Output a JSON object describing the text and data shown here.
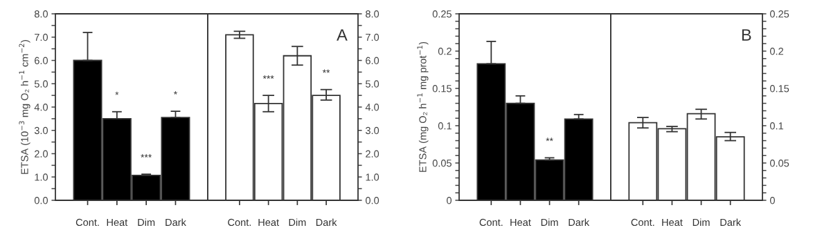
{
  "chart_data": [
    {
      "type": "bar",
      "categories": [
        "Cont.",
        "Heat",
        "Dim",
        "Dark"
      ],
      "ylabel": "ETSA (10$^{−3}$ mg O₂ h$^{−1}$ cm$^{−2}$)",
      "series": [
        {
          "color": "#000000",
          "values": [
            6.0,
            3.5,
            1.07,
            3.55
          ],
          "errors": [
            [
              6.0,
              7.2
            ],
            [
              3.5,
              3.8
            ],
            [
              1.07,
              1.12
            ],
            [
              3.55,
              3.82
            ]
          ]
        }
      ],
      "ylim": [
        0,
        8
      ],
      "yticks": [
        {
          "value": 0,
          "label": "0.0"
        },
        {
          "value": 0.5,
          "label": null
        },
        {
          "value": 1,
          "label": "1.0"
        },
        {
          "value": 1.5,
          "label": null
        },
        {
          "value": 2,
          "label": "2.0"
        },
        {
          "value": 2.5,
          "label": null
        },
        {
          "value": 3,
          "label": "3.0"
        },
        {
          "value": 3.5,
          "label": null
        },
        {
          "value": 4,
          "label": "4.0"
        },
        {
          "value": 4.5,
          "label": null
        },
        {
          "value": 5,
          "label": "5.0"
        },
        {
          "value": 5.5,
          "label": null
        },
        {
          "value": 6,
          "label": "6.0"
        },
        {
          "value": 6.5,
          "label": null
        },
        {
          "value": 7,
          "label": "7.0"
        },
        {
          "value": 7.5,
          "label": null
        },
        {
          "value": 8,
          "label": "8.0"
        }
      ],
      "annotations": [
        {
          "text": "*",
          "x": "Heat",
          "y": 3.8
        },
        {
          "text": "***",
          "x": "Dim",
          "y": 1.12
        },
        {
          "text": "*",
          "x": "Dark",
          "y": 3.82
        }
      ]
    },
    {
      "type": "bar",
      "categories": [
        "Cont.",
        "Heat",
        "Dim",
        "Dark"
      ],
      "series": [
        {
          "color": "#ffffff",
          "axis": "y2",
          "values": [
            7.1,
            4.15,
            6.2,
            4.5
          ],
          "errors": [
            [
              6.95,
              7.25
            ],
            [
              3.8,
              4.5
            ],
            [
              5.8,
              6.6
            ],
            [
              4.3,
              4.75
            ]
          ],
          "value_labels": [
            null,
            "***",
            null,
            "**"
          ]
        }
      ],
      "y2lim": [
        0,
        8
      ],
      "y2ticks": [
        {
          "value": 0,
          "label": "0.0"
        },
        {
          "value": 0.5,
          "label": null
        },
        {
          "value": 1,
          "label": "1.0"
        },
        {
          "value": 1.5,
          "label": null
        },
        {
          "value": 2,
          "label": "2.0"
        },
        {
          "value": 2.5,
          "label": null
        },
        {
          "value": 3,
          "label": "3.0"
        },
        {
          "value": 3.5,
          "label": null
        },
        {
          "value": 4,
          "label": "4.0"
        },
        {
          "value": 4.5,
          "label": null
        },
        {
          "value": 5,
          "label": "5.0"
        },
        {
          "value": 5.5,
          "label": null
        },
        {
          "value": 6,
          "label": "6.0"
        },
        {
          "value": 6.5,
          "label": null
        },
        {
          "value": 7,
          "label": "7.0"
        },
        {
          "value": 7.5,
          "label": null
        },
        {
          "value": 8,
          "label": "8.0"
        }
      ],
      "annotations": [
        "A"
      ]
    },
    {
      "type": "bar",
      "categories": [
        "Cont.",
        "Heat",
        "Dim",
        "Dark"
      ],
      "ylabel": "ETSA (mg O₂ h$^{−1}$ mg prot$^{−1}$)",
      "series": [
        {
          "color": "#000000",
          "values": [
            0.183,
            0.13,
            0.054,
            0.109
          ],
          "errors": [
            [
              0.183,
              0.213
            ],
            [
              0.13,
              0.14
            ],
            [
              0.054,
              0.057
            ],
            [
              0.109,
              0.115
            ]
          ]
        }
      ],
      "ylim": [
        0,
        0.25
      ],
      "yticks": [
        0,
        {
          "value": 0.01,
          "label": null
        },
        {
          "value": 0.02,
          "label": null
        },
        {
          "value": 0.03,
          "label": null
        },
        {
          "value": 0.04,
          "label": null
        },
        0.05,
        {
          "value": 0.06,
          "label": null
        },
        {
          "value": 0.07,
          "label": null
        },
        {
          "value": 0.08,
          "label": null
        },
        {
          "value": 0.09,
          "label": null
        },
        0.1,
        {
          "value": 0.11,
          "label": null
        },
        {
          "value": 0.12,
          "label": null
        },
        {
          "value": 0.13,
          "label": null
        },
        {
          "value": 0.14,
          "label": null
        },
        0.15,
        {
          "value": 0.16,
          "label": null
        },
        {
          "value": 0.17,
          "label": null
        },
        {
          "value": 0.18,
          "label": null
        },
        {
          "value": 0.19,
          "label": null
        },
        0.2,
        {
          "value": 0.21,
          "label": null
        },
        {
          "value": 0.22,
          "label": null
        },
        {
          "value": 0.23,
          "label": null
        },
        {
          "value": 0.24,
          "label": null
        },
        0.25
      ],
      "annotations": [
        {
          "text": "**",
          "x": "Dim",
          "y": 0.057
        }
      ]
    },
    {
      "type": "bar",
      "categories": [
        "Cont.",
        "Heat",
        "Dim",
        "Dark"
      ],
      "series": [
        {
          "color": "#ffffff",
          "axis": "y2",
          "values": [
            0.104,
            0.096,
            0.116,
            0.085
          ],
          "errors": [
            [
              0.097,
              0.111
            ],
            [
              0.092,
              0.099
            ],
            [
              0.109,
              0.122
            ],
            [
              0.08,
              0.091
            ]
          ]
        }
      ],
      "y2lim": [
        0,
        0.25
      ],
      "y2ticks": [
        0,
        {
          "value": 0.01,
          "label": null
        },
        {
          "value": 0.02,
          "label": null
        },
        {
          "value": 0.03,
          "label": null
        },
        {
          "value": 0.04,
          "label": null
        },
        0.05,
        {
          "value": 0.06,
          "label": null
        },
        {
          "value": 0.07,
          "label": null
        },
        {
          "value": 0.08,
          "label": null
        },
        {
          "value": 0.09,
          "label": null
        },
        0.1,
        {
          "value": 0.11,
          "label": null
        },
        {
          "value": 0.12,
          "label": null
        },
        {
          "value": 0.13,
          "label": null
        },
        {
          "value": 0.14,
          "label": null
        },
        0.15,
        {
          "value": 0.16,
          "label": null
        },
        {
          "value": 0.17,
          "label": null
        },
        {
          "value": 0.18,
          "label": null
        },
        {
          "value": 0.19,
          "label": null
        },
        0.2,
        {
          "value": 0.21,
          "label": null
        },
        {
          "value": 0.22,
          "label": null
        },
        {
          "value": 0.23,
          "label": null
        },
        {
          "value": 0.24,
          "label": null
        },
        0.25
      ],
      "annotations": [
        "B"
      ]
    }
  ]
}
